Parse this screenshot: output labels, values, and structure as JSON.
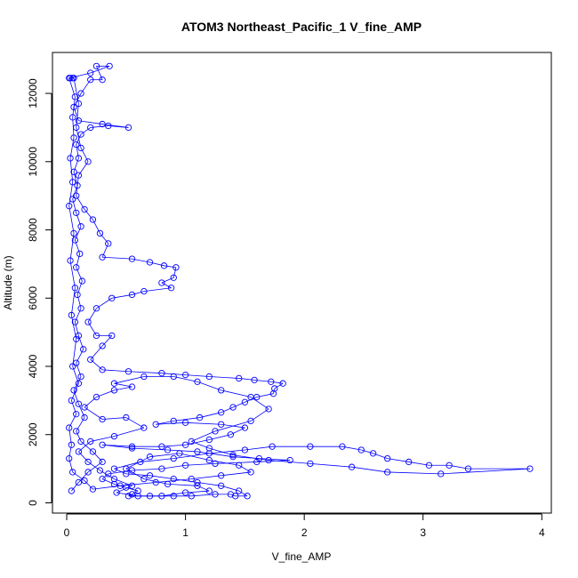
{
  "colors": {
    "series": "#0000ff",
    "axes": "#000000",
    "background": "#ffffff"
  },
  "chart_data": {
    "type": "scatter",
    "title": "ATOM3 Northeast_Pacific_1 V_fine_AMP",
    "xlabel": "V_fine_AMP",
    "ylabel": "Altitude (m)",
    "xlim": [
      -0.12,
      4.08
    ],
    "ylim": [
      -300,
      13200
    ],
    "xticks": [
      0,
      1,
      2,
      3,
      4
    ],
    "yticks": [
      0,
      2000,
      4000,
      6000,
      8000,
      10000,
      12000
    ],
    "grid": false,
    "legend": "none",
    "style": "points connected by lines (type='o')",
    "series": [
      {
        "points": [
          [
            0.04,
            350
          ],
          [
            0.1,
            600
          ],
          [
            0.18,
            900
          ],
          [
            0.3,
            1200
          ],
          [
            0.22,
            1500
          ],
          [
            0.12,
            1800
          ],
          [
            0.08,
            2100
          ],
          [
            0.15,
            2500
          ],
          [
            0.1,
            2900
          ],
          [
            0.06,
            3300
          ],
          [
            0.12,
            3700
          ],
          [
            0.08,
            4100
          ],
          [
            0.14,
            4500
          ],
          [
            0.1,
            4900
          ],
          [
            0.07,
            5300
          ],
          [
            0.12,
            5700
          ],
          [
            0.09,
            6100
          ],
          [
            0.13,
            6500
          ],
          [
            0.08,
            6900
          ],
          [
            0.11,
            7300
          ],
          [
            0.07,
            7700
          ],
          [
            0.12,
            8100
          ],
          [
            0.08,
            8500
          ],
          [
            0.05,
            8900
          ],
          [
            0.09,
            9300
          ],
          [
            0.06,
            9700
          ],
          [
            0.1,
            10100
          ],
          [
            0.08,
            10500
          ],
          [
            0.12,
            10800
          ],
          [
            0.2,
            11000
          ],
          [
            0.35,
            11050
          ],
          [
            0.52,
            11000
          ],
          [
            0.3,
            11100
          ],
          [
            0.1,
            11200
          ],
          [
            0.06,
            11600
          ],
          [
            0.12,
            12000
          ],
          [
            0.2,
            12400
          ],
          [
            0.3,
            12400
          ],
          [
            0.25,
            12800
          ],
          [
            0.36,
            12800
          ],
          [
            0.2,
            12600
          ],
          [
            0.03,
            12450
          ],
          [
            0.06,
            12450
          ],
          [
            0.1,
            11700
          ],
          [
            0.08,
            11000
          ],
          [
            0.12,
            10400
          ],
          [
            0.18,
            10000
          ],
          [
            0.1,
            9600
          ],
          [
            0.08,
            9000
          ],
          [
            0.15,
            8600
          ],
          [
            0.22,
            8300
          ],
          [
            0.28,
            7900
          ],
          [
            0.35,
            7600
          ],
          [
            0.3,
            7200
          ],
          [
            0.55,
            7150
          ],
          [
            0.7,
            7050
          ],
          [
            0.82,
            6950
          ],
          [
            0.92,
            6900
          ],
          [
            0.9,
            6600
          ],
          [
            0.8,
            6450
          ],
          [
            0.88,
            6300
          ],
          [
            0.65,
            6200
          ],
          [
            0.55,
            6100
          ],
          [
            0.38,
            6000
          ],
          [
            0.25,
            5700
          ],
          [
            0.18,
            5300
          ],
          [
            0.25,
            4900
          ],
          [
            0.38,
            4900
          ],
          [
            0.3,
            4600
          ],
          [
            0.2,
            4200
          ],
          [
            0.3,
            3900
          ],
          [
            0.52,
            3850
          ],
          [
            0.8,
            3800
          ],
          [
            1.0,
            3750
          ],
          [
            1.2,
            3700
          ],
          [
            1.45,
            3650
          ],
          [
            1.58,
            3600
          ],
          [
            1.72,
            3550
          ],
          [
            1.82,
            3500
          ],
          [
            1.75,
            3350
          ],
          [
            1.74,
            3200
          ],
          [
            1.6,
            3100
          ],
          [
            1.5,
            2950
          ],
          [
            1.4,
            2800
          ],
          [
            1.3,
            2650
          ],
          [
            1.12,
            2500
          ],
          [
            0.9,
            2400
          ],
          [
            0.75,
            2300
          ],
          [
            1.0,
            2350
          ],
          [
            1.3,
            2300
          ],
          [
            1.5,
            2200
          ],
          [
            1.38,
            2000
          ],
          [
            1.2,
            1850
          ],
          [
            1.0,
            1700
          ],
          [
            0.8,
            1650
          ],
          [
            0.55,
            1650
          ],
          [
            0.3,
            1700
          ],
          [
            0.55,
            1600
          ],
          [
            0.85,
            1550
          ],
          [
            1.1,
            1500
          ],
          [
            1.4,
            1350
          ],
          [
            1.62,
            1300
          ],
          [
            1.88,
            1250
          ],
          [
            1.6,
            1200
          ],
          [
            1.25,
            1150
          ],
          [
            1.0,
            1100
          ],
          [
            0.8,
            1000
          ],
          [
            0.55,
            950
          ],
          [
            0.35,
            850
          ],
          [
            0.3,
            700
          ],
          [
            0.4,
            550
          ],
          [
            0.5,
            450
          ],
          [
            0.6,
            350
          ],
          [
            0.55,
            250
          ],
          [
            0.52,
            200
          ],
          [
            0.7,
            200
          ],
          [
            0.9,
            200
          ],
          [
            1.05,
            200
          ],
          [
            1.25,
            250
          ],
          [
            1.38,
            250
          ],
          [
            1.42,
            200
          ],
          [
            1.52,
            200
          ],
          [
            1.45,
            350
          ],
          [
            1.3,
            500
          ],
          [
            1.1,
            600
          ],
          [
            0.9,
            700
          ],
          [
            0.7,
            800
          ],
          [
            0.5,
            850
          ],
          [
            0.4,
            1000
          ],
          [
            0.62,
            1200
          ],
          [
            0.9,
            1300
          ],
          [
            1.2,
            1450
          ],
          [
            1.5,
            1550
          ],
          [
            1.73,
            1650
          ],
          [
            2.05,
            1650
          ],
          [
            2.32,
            1650
          ],
          [
            2.48,
            1550
          ],
          [
            2.58,
            1450
          ],
          [
            2.7,
            1300
          ],
          [
            2.88,
            1200
          ],
          [
            3.05,
            1100
          ],
          [
            3.22,
            1100
          ],
          [
            3.38,
            1000
          ],
          [
            3.9,
            1000
          ],
          [
            3.15,
            850
          ],
          [
            2.7,
            900
          ],
          [
            2.4,
            1050
          ],
          [
            2.05,
            1150
          ],
          [
            1.7,
            1250
          ],
          [
            1.4,
            1400
          ],
          [
            1.2,
            1600
          ],
          [
            1.05,
            1800
          ],
          [
            1.25,
            2100
          ],
          [
            1.55,
            2400
          ],
          [
            1.7,
            2750
          ],
          [
            1.55,
            3100
          ],
          [
            1.3,
            3300
          ],
          [
            1.1,
            3550
          ],
          [
            0.9,
            3700
          ],
          [
            0.65,
            3700
          ],
          [
            0.4,
            3500
          ],
          [
            0.55,
            3400
          ],
          [
            0.4,
            3300
          ],
          [
            0.25,
            3100
          ],
          [
            0.15,
            2800
          ],
          [
            0.3,
            2450
          ],
          [
            0.5,
            2500
          ],
          [
            0.65,
            2200
          ],
          [
            0.4,
            1950
          ],
          [
            0.2,
            1800
          ],
          [
            0.1,
            1500
          ],
          [
            0.18,
            1200
          ],
          [
            0.28,
            950
          ],
          [
            0.4,
            700
          ],
          [
            0.55,
            500
          ],
          [
            0.42,
            300
          ],
          [
            0.6,
            200
          ],
          [
            0.8,
            200
          ],
          [
            1.0,
            300
          ],
          [
            1.2,
            350
          ],
          [
            1.1,
            500
          ],
          [
            0.85,
            550
          ],
          [
            0.65,
            700
          ],
          [
            0.5,
            1000
          ],
          [
            0.7,
            1350
          ],
          [
            0.95,
            1450
          ],
          [
            1.2,
            1250
          ],
          [
            1.45,
            1100
          ],
          [
            1.55,
            900
          ],
          [
            1.3,
            800
          ],
          [
            1.05,
            700
          ],
          [
            0.75,
            600
          ],
          [
            0.45,
            500
          ],
          [
            0.22,
            400
          ],
          [
            0.15,
            650
          ],
          [
            0.05,
            900
          ],
          [
            0.02,
            1300
          ],
          [
            0.04,
            1700
          ],
          [
            0.02,
            2200
          ],
          [
            0.08,
            2600
          ],
          [
            0.04,
            3000
          ],
          [
            0.1,
            3500
          ],
          [
            0.05,
            4000
          ],
          [
            0.08,
            4800
          ],
          [
            0.04,
            5500
          ],
          [
            0.07,
            6300
          ],
          [
            0.03,
            7100
          ],
          [
            0.06,
            7900
          ],
          [
            0.02,
            8700
          ],
          [
            0.05,
            9400
          ],
          [
            0.03,
            10100
          ],
          [
            0.06,
            10700
          ],
          [
            0.05,
            11300
          ],
          [
            0.07,
            11900
          ],
          [
            0.02,
            12450
          ],
          [
            0.05,
            12450
          ]
        ]
      }
    ]
  }
}
